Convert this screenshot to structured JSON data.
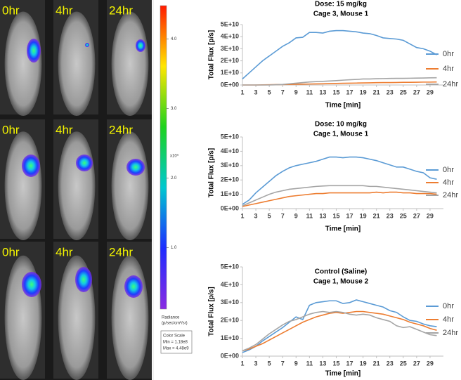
{
  "images": {
    "rows": [
      [
        "0hr",
        "4hr",
        "24hr"
      ],
      [
        "0hr",
        "4hr",
        "24hr"
      ],
      [
        "0hr",
        "4hr",
        "24hr"
      ]
    ]
  },
  "colorbar": {
    "clim": [
      0.118,
      4.48
    ],
    "ticks": [
      {
        "value": 4,
        "label": "4.0"
      },
      {
        "value": 3,
        "label": "3.0"
      },
      {
        "value": 2,
        "label": "2.0"
      },
      {
        "value": 1,
        "label": "1.0"
      }
    ],
    "exponent": "x10⁹",
    "label": "Radiance",
    "unit": "(p/sec/cm²/sr)",
    "box_title": "Color Scale",
    "min": "Min = 1.18e8",
    "max": "Max = 4.48e9"
  },
  "chart_data": [
    {
      "type": "line",
      "title": "Dose: 15 mg/kg",
      "subtitle": "Cage 3, Mouse 1",
      "xlabel": "Time [min]",
      "ylabel": "Total Flux [p/s]",
      "x": [
        1,
        2,
        3,
        4,
        5,
        6,
        7,
        8,
        9,
        10,
        11,
        12,
        13,
        14,
        15,
        16,
        17,
        18,
        19,
        20,
        21,
        22,
        23,
        24,
        25,
        26,
        27,
        28,
        29,
        30
      ],
      "xlim": [
        1,
        31
      ],
      "xticks": [
        1,
        3,
        5,
        7,
        9,
        11,
        13,
        15,
        17,
        19,
        21,
        23,
        25,
        27,
        29
      ],
      "ylim": [
        0,
        50000000000.0
      ],
      "yticks": [
        {
          "value": 0,
          "label": "0E+00"
        },
        {
          "value": 10000000000.0,
          "label": "1E+10"
        },
        {
          "value": 20000000000.0,
          "label": "2E+10"
        },
        {
          "value": 30000000000.0,
          "label": "3E+10"
        },
        {
          "value": 40000000000.0,
          "label": "4E+10"
        },
        {
          "value": 50000000000.0,
          "label": "5E+10"
        }
      ],
      "grid": false,
      "legend": "right",
      "series": [
        {
          "name": "0hr",
          "color": "#5b9bd5",
          "values": [
            5000000000.0,
            10000000000.0,
            15000000000.0,
            20000000000.0,
            24000000000.0,
            28000000000.0,
            32000000000.0,
            35000000000.0,
            39000000000.0,
            39500000000.0,
            43500000000.0,
            43500000000.0,
            43000000000.0,
            44500000000.0,
            45000000000.0,
            45000000000.0,
            44500000000.0,
            44000000000.0,
            43000000000.0,
            42500000000.0,
            41000000000.0,
            39000000000.0,
            38500000000.0,
            38000000000.0,
            37000000000.0,
            34000000000.0,
            31000000000.0,
            30000000000.0,
            28000000000.0,
            25000000000.0
          ]
        },
        {
          "name": "4hr",
          "color": "#ed7d31",
          "values": [
            0,
            0,
            0,
            100000000.0,
            200000000.0,
            300000000.0,
            400000000.0,
            500000000.0,
            600000000.0,
            700000000.0,
            800000000.0,
            900000000.0,
            1000000000.0,
            1200000000.0,
            1300000000.0,
            1400000000.0,
            1500000000.0,
            1600000000.0,
            1700000000.0,
            1800000000.0,
            1900000000.0,
            2000000000.0,
            2000000000.0,
            2100000000.0,
            2200000000.0,
            2200000000.0,
            2300000000.0,
            2400000000.0,
            2400000000.0,
            2500000000.0
          ]
        },
        {
          "name": "24hr",
          "color": "#a5a5a5",
          "values": [
            0,
            0,
            0,
            0,
            0,
            200000000.0,
            500000000.0,
            1000000000.0,
            1500000000.0,
            2000000000.0,
            2500000000.0,
            2800000000.0,
            3000000000.0,
            3300000000.0,
            3600000000.0,
            4000000000.0,
            4300000000.0,
            4600000000.0,
            5000000000.0,
            5000000000.0,
            5200000000.0,
            5300000000.0,
            5400000000.0,
            5500000000.0,
            5500000000.0,
            5600000000.0,
            5700000000.0,
            5800000000.0,
            5900000000.0,
            6000000000.0
          ]
        }
      ]
    },
    {
      "type": "line",
      "title": "Dose: 10 mg/kg",
      "subtitle": "Cage 1, Mouse 1",
      "xlabel": "Time [min]",
      "ylabel": "Total Flux [p/s]",
      "x": [
        1,
        2,
        3,
        4,
        5,
        6,
        7,
        8,
        9,
        10,
        11,
        12,
        13,
        14,
        15,
        16,
        17,
        18,
        19,
        20,
        21,
        22,
        23,
        24,
        25,
        26,
        27,
        28,
        29,
        30
      ],
      "xlim": [
        1,
        31
      ],
      "xticks": [
        1,
        3,
        5,
        7,
        9,
        11,
        13,
        15,
        17,
        19,
        21,
        23,
        25,
        27,
        29
      ],
      "ylim": [
        0,
        50000000000.0
      ],
      "yticks": [
        {
          "value": 0,
          "label": "0E+00"
        },
        {
          "value": 10000000000.0,
          "label": "1E+10"
        },
        {
          "value": 20000000000.0,
          "label": "2E+10"
        },
        {
          "value": 30000000000.0,
          "label": "3E+10"
        },
        {
          "value": 40000000000.0,
          "label": "4E+10"
        },
        {
          "value": 50000000000.0,
          "label": "5E+10"
        }
      ],
      "grid": false,
      "legend": "right",
      "series": [
        {
          "name": "0hr",
          "color": "#5b9bd5",
          "values": [
            3000000000.0,
            6000000000.0,
            11000000000.0,
            15000000000.0,
            19000000000.0,
            23000000000.0,
            26000000000.0,
            28500000000.0,
            30000000000.0,
            31000000000.0,
            32000000000.0,
            33000000000.0,
            34500000000.0,
            36000000000.0,
            36000000000.0,
            35500000000.0,
            36000000000.0,
            36000000000.0,
            35500000000.0,
            34500000000.0,
            33500000000.0,
            32000000000.0,
            30500000000.0,
            29000000000.0,
            29000000000.0,
            27500000000.0,
            26000000000.0,
            25000000000.0,
            21500000000.0,
            20500000000.0
          ]
        },
        {
          "name": "4hr",
          "color": "#ed7d31",
          "values": [
            1500000000.0,
            2500000000.0,
            3500000000.0,
            4500000000.0,
            5500000000.0,
            6500000000.0,
            7500000000.0,
            8500000000.0,
            9000000000.0,
            9500000000.0,
            10000000000.0,
            10500000000.0,
            10500000000.0,
            11000000000.0,
            11000000000.0,
            11000000000.0,
            11000000000.0,
            11000000000.0,
            11000000000.0,
            11000000000.0,
            11500000000.0,
            11000000000.0,
            11500000000.0,
            11500000000.0,
            11000000000.0,
            11000000000.0,
            10500000000.0,
            10500000000.0,
            10500000000.0,
            10000000000.0
          ]
        },
        {
          "name": "24hr",
          "color": "#a5a5a5",
          "values": [
            2000000000.0,
            4000000000.0,
            6000000000.0,
            8000000000.0,
            10000000000.0,
            11500000000.0,
            12500000000.0,
            13500000000.0,
            14000000000.0,
            14500000000.0,
            15000000000.0,
            15500000000.0,
            15800000000.0,
            16000000000.0,
            16000000000.0,
            16000000000.0,
            16000000000.0,
            16000000000.0,
            16000000000.0,
            15500000000.0,
            15500000000.0,
            15000000000.0,
            14500000000.0,
            14000000000.0,
            13500000000.0,
            13000000000.0,
            12500000000.0,
            12000000000.0,
            11500000000.0,
            11000000000.0
          ]
        }
      ]
    },
    {
      "type": "line",
      "title": "Control (Saline)",
      "subtitle": "Cage 1, Mouse 2",
      "xlabel": "Time [min]",
      "ylabel": "Total Flux [p/s]",
      "x": [
        1,
        2,
        3,
        4,
        5,
        6,
        7,
        8,
        9,
        10,
        11,
        12,
        13,
        14,
        15,
        16,
        17,
        18,
        19,
        20,
        21,
        22,
        23,
        24,
        25,
        26,
        27,
        28,
        29,
        30
      ],
      "xlim": [
        1,
        31
      ],
      "xticks": [
        1,
        3,
        5,
        7,
        9,
        11,
        13,
        15,
        17,
        19,
        21,
        23,
        25,
        27,
        29
      ],
      "ylim": [
        0,
        50000000000.0
      ],
      "yticks": [
        {
          "value": 0,
          "label": "0E+00"
        },
        {
          "value": 10000000000.0,
          "label": "1E+10"
        },
        {
          "value": 20000000000.0,
          "label": "2E+10"
        },
        {
          "value": 30000000000.0,
          "label": "3E+10"
        },
        {
          "value": 40000000000.0,
          "label": "4E+10"
        },
        {
          "value": 50000000000.0,
          "label": "5E+10"
        }
      ],
      "grid": false,
      "legend": "right",
      "series": [
        {
          "name": "0hr",
          "color": "#5b9bd5",
          "values": [
            2000000000.0,
            3500000000.0,
            5500000000.0,
            8500000000.0,
            11000000000.0,
            13500000000.0,
            16000000000.0,
            19000000000.0,
            22000000000.0,
            20500000000.0,
            28500000000.0,
            30000000000.0,
            30500000000.0,
            31000000000.0,
            31000000000.0,
            29500000000.0,
            30000000000.0,
            31500000000.0,
            30500000000.0,
            29500000000.0,
            28500000000.0,
            27500000000.0,
            25500000000.0,
            24500000000.0,
            22000000000.0,
            20000000000.0,
            19500000000.0,
            18000000000.0,
            17000000000.0,
            16500000000.0
          ]
        },
        {
          "name": "4hr",
          "color": "#ed7d31",
          "values": [
            3000000000.0,
            4000000000.0,
            5500000000.0,
            7000000000.0,
            9000000000.0,
            11000000000.0,
            13000000000.0,
            15000000000.0,
            17000000000.0,
            19000000000.0,
            20500000000.0,
            22000000000.0,
            23000000000.0,
            24000000000.0,
            24500000000.0,
            24000000000.0,
            24500000000.0,
            25000000000.0,
            25000000000.0,
            24500000000.0,
            24000000000.0,
            23500000000.0,
            22500000000.0,
            21500000000.0,
            20500000000.0,
            19000000000.0,
            18000000000.0,
            17000000000.0,
            15500000000.0,
            14500000000.0
          ]
        },
        {
          "name": "24hr",
          "color": "#a5a5a5",
          "values": [
            3000000000.0,
            4500000000.0,
            6500000000.0,
            9500000000.0,
            12500000000.0,
            15000000000.0,
            17500000000.0,
            19500000000.0,
            20500000000.0,
            22000000000.0,
            23500000000.0,
            24500000000.0,
            25000000000.0,
            24500000000.0,
            25000000000.0,
            24500000000.0,
            23500000000.0,
            23000000000.0,
            23500000000.0,
            23000000000.0,
            21500000000.0,
            20500000000.0,
            19500000000.0,
            17000000000.0,
            16000000000.0,
            16500000000.0,
            15000000000.0,
            13500000000.0,
            12000000000.0,
            11500000000.0
          ]
        }
      ]
    }
  ]
}
